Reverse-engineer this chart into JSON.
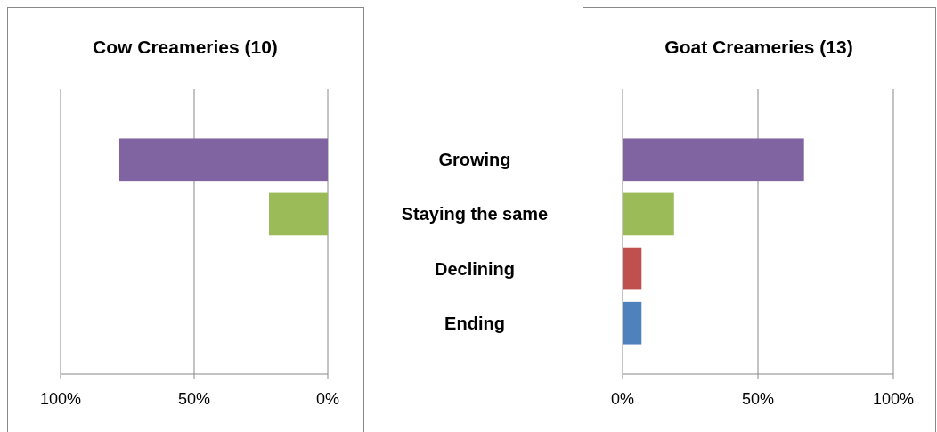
{
  "chart_data": [
    {
      "type": "bar",
      "orientation": "horizontal",
      "title": "Cow Creameries (10)",
      "categories": [
        null,
        null,
        null,
        null
      ],
      "values": [
        78,
        22,
        0,
        0
      ],
      "colors": [
        "#8064a2",
        "#9bbb59",
        "#c0504d",
        "#4f81bd"
      ],
      "xlim": [
        100,
        0
      ],
      "xticks": [
        {
          "value": 100,
          "label": "100%"
        },
        {
          "value": 50,
          "label": "50%"
        },
        {
          "value": 0,
          "label": "0%"
        }
      ],
      "grid": "x"
    },
    {
      "type": "bar",
      "orientation": "horizontal",
      "title": "Goat Creameries (13)",
      "categories": [
        "Growing",
        "Staying the same",
        "Declining",
        "Ending"
      ],
      "values": [
        67,
        19,
        7,
        7
      ],
      "colors": [
        "#8064a2",
        "#9bbb59",
        "#c0504d",
        "#4f81bd"
      ],
      "xlim": [
        0,
        100
      ],
      "xticks": [
        {
          "value": 0,
          "label": "0%"
        },
        {
          "value": 50,
          "label": "50%"
        },
        {
          "value": 100,
          "label": "100%"
        }
      ],
      "grid": "x"
    }
  ]
}
